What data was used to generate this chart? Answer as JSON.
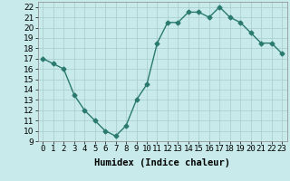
{
  "x": [
    0,
    1,
    2,
    3,
    4,
    5,
    6,
    7,
    8,
    9,
    10,
    11,
    12,
    13,
    14,
    15,
    16,
    17,
    18,
    19,
    20,
    21,
    22,
    23
  ],
  "y": [
    17.0,
    16.5,
    16.0,
    13.5,
    12.0,
    11.0,
    10.0,
    9.5,
    10.5,
    13.0,
    14.5,
    18.5,
    20.5,
    20.5,
    21.5,
    21.5,
    21.0,
    22.0,
    21.0,
    20.5,
    19.5,
    18.5,
    18.5,
    17.5
  ],
  "xlabel": "Humidex (Indice chaleur)",
  "ylim": [
    9,
    22.5
  ],
  "xlim": [
    -0.5,
    23.5
  ],
  "yticks": [
    9,
    10,
    11,
    12,
    13,
    14,
    15,
    16,
    17,
    18,
    19,
    20,
    21,
    22
  ],
  "xtick_labels": [
    "0",
    "1",
    "2",
    "3",
    "4",
    "5",
    "6",
    "7",
    "8",
    "9",
    "10",
    "11",
    "12",
    "13",
    "14",
    "15",
    "16",
    "17",
    "18",
    "19",
    "20",
    "21",
    "22",
    "23"
  ],
  "line_color": "#2a7a6f",
  "marker": "D",
  "marker_size": 2.5,
  "bg_color": "#c8eaea",
  "grid_color": "#a8cccc",
  "label_fontsize": 7.5,
  "tick_fontsize": 6.5
}
